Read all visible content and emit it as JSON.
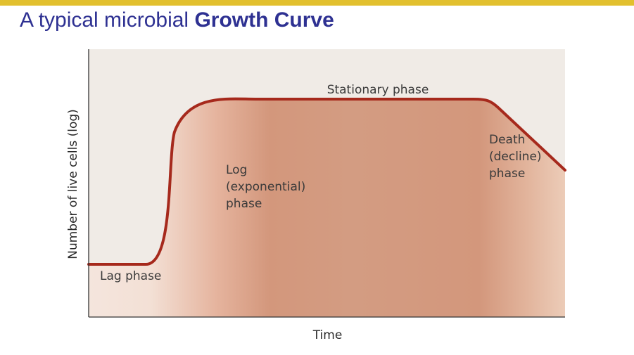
{
  "slide": {
    "title_plain": "A typical microbial ",
    "title_bold": "Growth Curve"
  },
  "colors": {
    "top_bar": "#e2c02e",
    "title": "#2e3192",
    "plot_bg": "#f0ebe6",
    "curve": "#a6291c",
    "fill": "#d39a7e"
  },
  "chart_data": {
    "type": "line",
    "xlabel": "Time",
    "ylabel": "Number of live cells (log)",
    "ticks": "none",
    "grid": false,
    "series": [
      {
        "x": [
          0,
          12,
          18,
          35,
          83,
          100
        ],
        "y": [
          0,
          0,
          0.8,
          1.0,
          1.0,
          0.57
        ]
      }
    ],
    "phases": [
      {
        "label": "Lag phase",
        "x_range": [
          0,
          12
        ]
      },
      {
        "label": "Log\n(exponential)\nphase",
        "x_range": [
          12,
          35
        ]
      },
      {
        "label": "Stationary phase",
        "x_range": [
          35,
          83
        ]
      },
      {
        "label": "Death\n(decline)\nphase",
        "x_range": [
          83,
          100
        ]
      }
    ]
  }
}
